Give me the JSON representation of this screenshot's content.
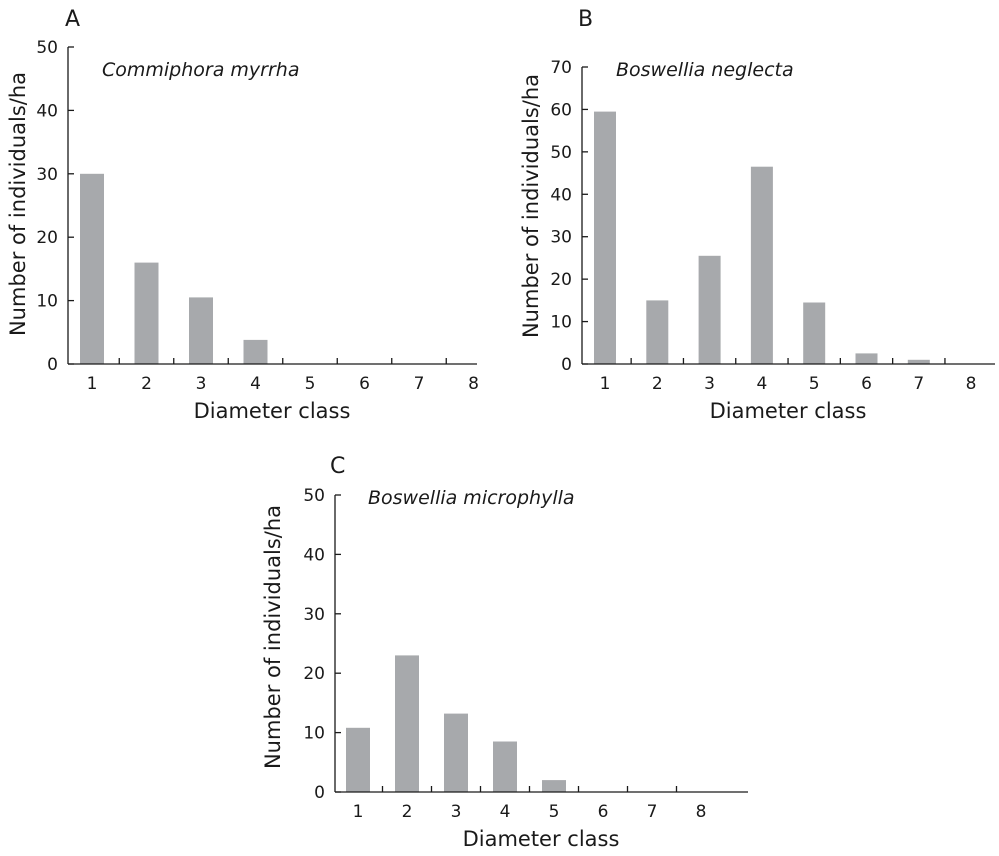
{
  "chart_data": [
    {
      "type": "bar",
      "panel_label": "A",
      "title": "Commiphora myrrha",
      "xlabel": "Diameter class",
      "ylabel": "Number of individuals/ha",
      "categories": [
        "1",
        "2",
        "3",
        "4",
        "5",
        "6",
        "7",
        "8"
      ],
      "values": [
        30,
        16,
        10.5,
        3.8,
        0,
        0,
        0,
        0
      ],
      "ylim": [
        0,
        50
      ],
      "yticks": [
        0,
        10,
        20,
        30,
        40,
        50
      ],
      "bar_color": "#a7a9ac",
      "grid": false
    },
    {
      "type": "bar",
      "panel_label": "B",
      "title": "Boswellia neglecta",
      "xlabel": "Diameter class",
      "ylabel": "Number of individuals/ha",
      "categories": [
        "1",
        "2",
        "3",
        "4",
        "5",
        "6",
        "7",
        "8"
      ],
      "values": [
        59.5,
        15,
        25.5,
        46.5,
        14.5,
        2.5,
        1,
        0
      ],
      "ylim": [
        0,
        70
      ],
      "yticks": [
        0,
        10,
        20,
        30,
        40,
        50,
        60,
        70
      ],
      "bar_color": "#a7a9ac",
      "grid": false
    },
    {
      "type": "bar",
      "panel_label": "C",
      "title": "Boswellia microphylla",
      "xlabel": "Diameter class",
      "ylabel": "Number of individuals/ha",
      "categories": [
        "1",
        "2",
        "3",
        "4",
        "5",
        "6",
        "7",
        "8"
      ],
      "values": [
        10.8,
        23,
        13.2,
        8.5,
        2,
        0,
        0,
        0
      ],
      "ylim": [
        0,
        50
      ],
      "yticks": [
        0,
        10,
        20,
        30,
        40,
        50
      ],
      "bar_color": "#a7a9ac",
      "grid": false
    }
  ]
}
